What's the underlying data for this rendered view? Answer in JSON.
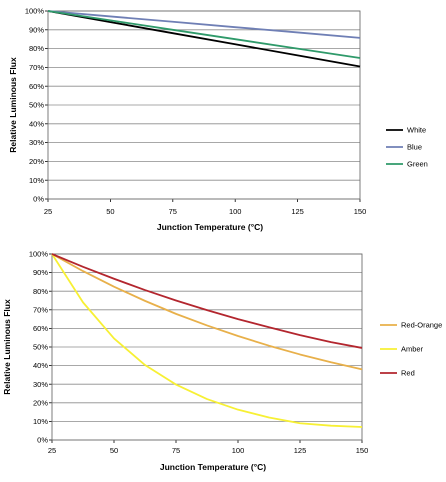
{
  "chart_data": [
    {
      "type": "line",
      "xlabel": "Junction Temperature (°C)",
      "ylabel": "Relative Luminous Flux",
      "x_ticks": [
        "25",
        "50",
        "75",
        "100",
        "125",
        "150"
      ],
      "y_ticks": [
        "0%",
        "10%",
        "20%",
        "30%",
        "40%",
        "50%",
        "60%",
        "70%",
        "80%",
        "90%",
        "100%"
      ],
      "xlim": [
        25,
        150
      ],
      "ylim": [
        0,
        100
      ],
      "grid": true,
      "legend_position": "right",
      "x": [
        25,
        50,
        75,
        100,
        125,
        150
      ],
      "series": [
        {
          "name": "White",
          "color": "#000000",
          "values": [
            100,
            94.1,
            88.2,
            82.3,
            76.4,
            70.5
          ]
        },
        {
          "name": "Blue",
          "color": "#6f7fb5",
          "values": [
            100,
            97.1,
            94.3,
            91.4,
            88.6,
            85.7
          ]
        },
        {
          "name": "Green",
          "color": "#2f9a6a",
          "values": [
            100,
            95.0,
            90.0,
            85.0,
            80.0,
            75.0
          ]
        }
      ]
    },
    {
      "type": "line",
      "xlabel": "Junction Temperature (°C)",
      "ylabel": "Relative Luminous Flux",
      "x_ticks": [
        "25",
        "50",
        "75",
        "100",
        "125",
        "150"
      ],
      "y_ticks": [
        "0%",
        "10%",
        "20%",
        "30%",
        "40%",
        "50%",
        "60%",
        "70%",
        "80%",
        "90%",
        "100%"
      ],
      "xlim": [
        25,
        150
      ],
      "ylim": [
        0,
        100
      ],
      "grid": true,
      "legend_position": "right",
      "x": [
        25,
        37.5,
        50,
        62.5,
        75,
        87.5,
        100,
        112.5,
        125,
        137.5,
        150
      ],
      "series": [
        {
          "name": "Red-Orange",
          "color": "#e8b04a",
          "values": [
            100,
            90.8,
            82.4,
            74.8,
            67.8,
            61.6,
            55.9,
            50.7,
            46.0,
            41.8,
            38.0
          ]
        },
        {
          "name": "Amber",
          "color": "#f7f034",
          "values": [
            100,
            74.0,
            54.6,
            40.3,
            29.8,
            22.0,
            16.3,
            12.1,
            9.0,
            7.7,
            7.0
          ]
        },
        {
          "name": "Red",
          "color": "#b3262e",
          "values": [
            100,
            93.1,
            86.7,
            80.6,
            75.0,
            69.8,
            65.0,
            60.6,
            56.4,
            52.6,
            49.5
          ]
        }
      ]
    }
  ]
}
